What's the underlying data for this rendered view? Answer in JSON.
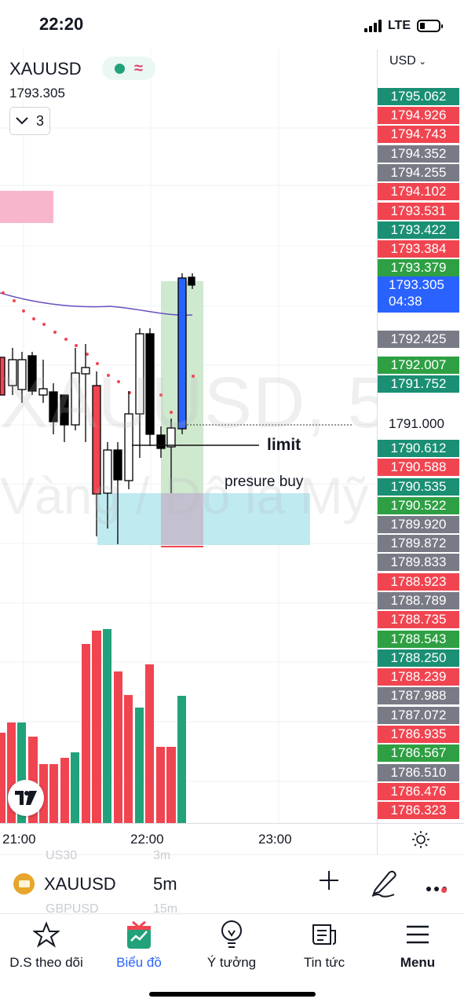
{
  "status_bar": {
    "time": "22:20",
    "network": "LTE"
  },
  "chart_header": {
    "symbol": "XAUUSD",
    "price": "1793.305",
    "indicator_count": "3"
  },
  "watermark": {
    "line1": "XAUUSD, 5",
    "line2": "Vàng / Đô la Mỹ"
  },
  "annotations": {
    "limit": "limit",
    "pressure_buy": "presure buy"
  },
  "price_axis": {
    "currency": "USD",
    "current_price": "1793.305",
    "countdown": "04:38",
    "plain_price": "1791.000",
    "labels": [
      {
        "text": "1795.062",
        "color": "#1a8f74"
      },
      {
        "text": "1794.926",
        "color": "#f04550"
      },
      {
        "text": "1794.743",
        "color": "#f04550"
      },
      {
        "text": "1794.352",
        "color": "#787b86"
      },
      {
        "text": "1794.255",
        "color": "#787b86"
      },
      {
        "text": "1794.102",
        "color": "#f04550"
      },
      {
        "text": "1793.531",
        "color": "#f04550"
      },
      {
        "text": "1793.422",
        "color": "#1a8f74"
      },
      {
        "text": "1793.384",
        "color": "#f04550"
      },
      {
        "text": "1793.379",
        "color": "#2ea043"
      },
      {
        "text": "1792.425",
        "color": "#787b86"
      },
      {
        "text": "1792.007",
        "color": "#2ea043"
      },
      {
        "text": "1791.752",
        "color": "#1a8f74"
      },
      {
        "text": "1790.612",
        "color": "#1a8f74"
      },
      {
        "text": "1790.588",
        "color": "#f04550"
      },
      {
        "text": "1790.535",
        "color": "#1a8f74"
      },
      {
        "text": "1790.522",
        "color": "#2ea043"
      },
      {
        "text": "1789.920",
        "color": "#787b86"
      },
      {
        "text": "1789.872",
        "color": "#787b86"
      },
      {
        "text": "1789.833",
        "color": "#787b86"
      },
      {
        "text": "1788.923",
        "color": "#f04550"
      },
      {
        "text": "1788.789",
        "color": "#787b86"
      },
      {
        "text": "1788.735",
        "color": "#f04550"
      },
      {
        "text": "1788.543",
        "color": "#2ea043"
      },
      {
        "text": "1788.250",
        "color": "#1a8f74"
      },
      {
        "text": "1788.239",
        "color": "#f04550"
      },
      {
        "text": "1787.988",
        "color": "#787b86"
      },
      {
        "text": "1787.072",
        "color": "#787b86"
      },
      {
        "text": "1786.935",
        "color": "#f04550"
      },
      {
        "text": "1786.567",
        "color": "#2ea043"
      },
      {
        "text": "1786.510",
        "color": "#787b86"
      },
      {
        "text": "1786.476",
        "color": "#f04550"
      },
      {
        "text": "1786.323",
        "color": "#f04550"
      }
    ]
  },
  "time_axis": [
    "21:00",
    "22:00",
    "23:00"
  ],
  "symbol_bar": {
    "symbol": "XAUUSD",
    "interval": "5m",
    "ghost_above_symbol": "US30",
    "ghost_above_interval": "3m",
    "ghost_below_symbol": "GBPUSD",
    "ghost_below_interval": "15m"
  },
  "bottom_nav": [
    {
      "label": "D.S theo dõi",
      "icon": "star-icon"
    },
    {
      "label": "Biểu đồ",
      "icon": "chart-gift-icon"
    },
    {
      "label": "Ý tưởng",
      "icon": "lightbulb-icon"
    },
    {
      "label": "Tin tức",
      "icon": "news-icon"
    },
    {
      "label": "Menu",
      "icon": "hamburger-icon"
    }
  ],
  "colors": {
    "up": "#22a27a",
    "down": "#f04550",
    "accent": "#2962ff",
    "active_nav": "#2962ff"
  }
}
